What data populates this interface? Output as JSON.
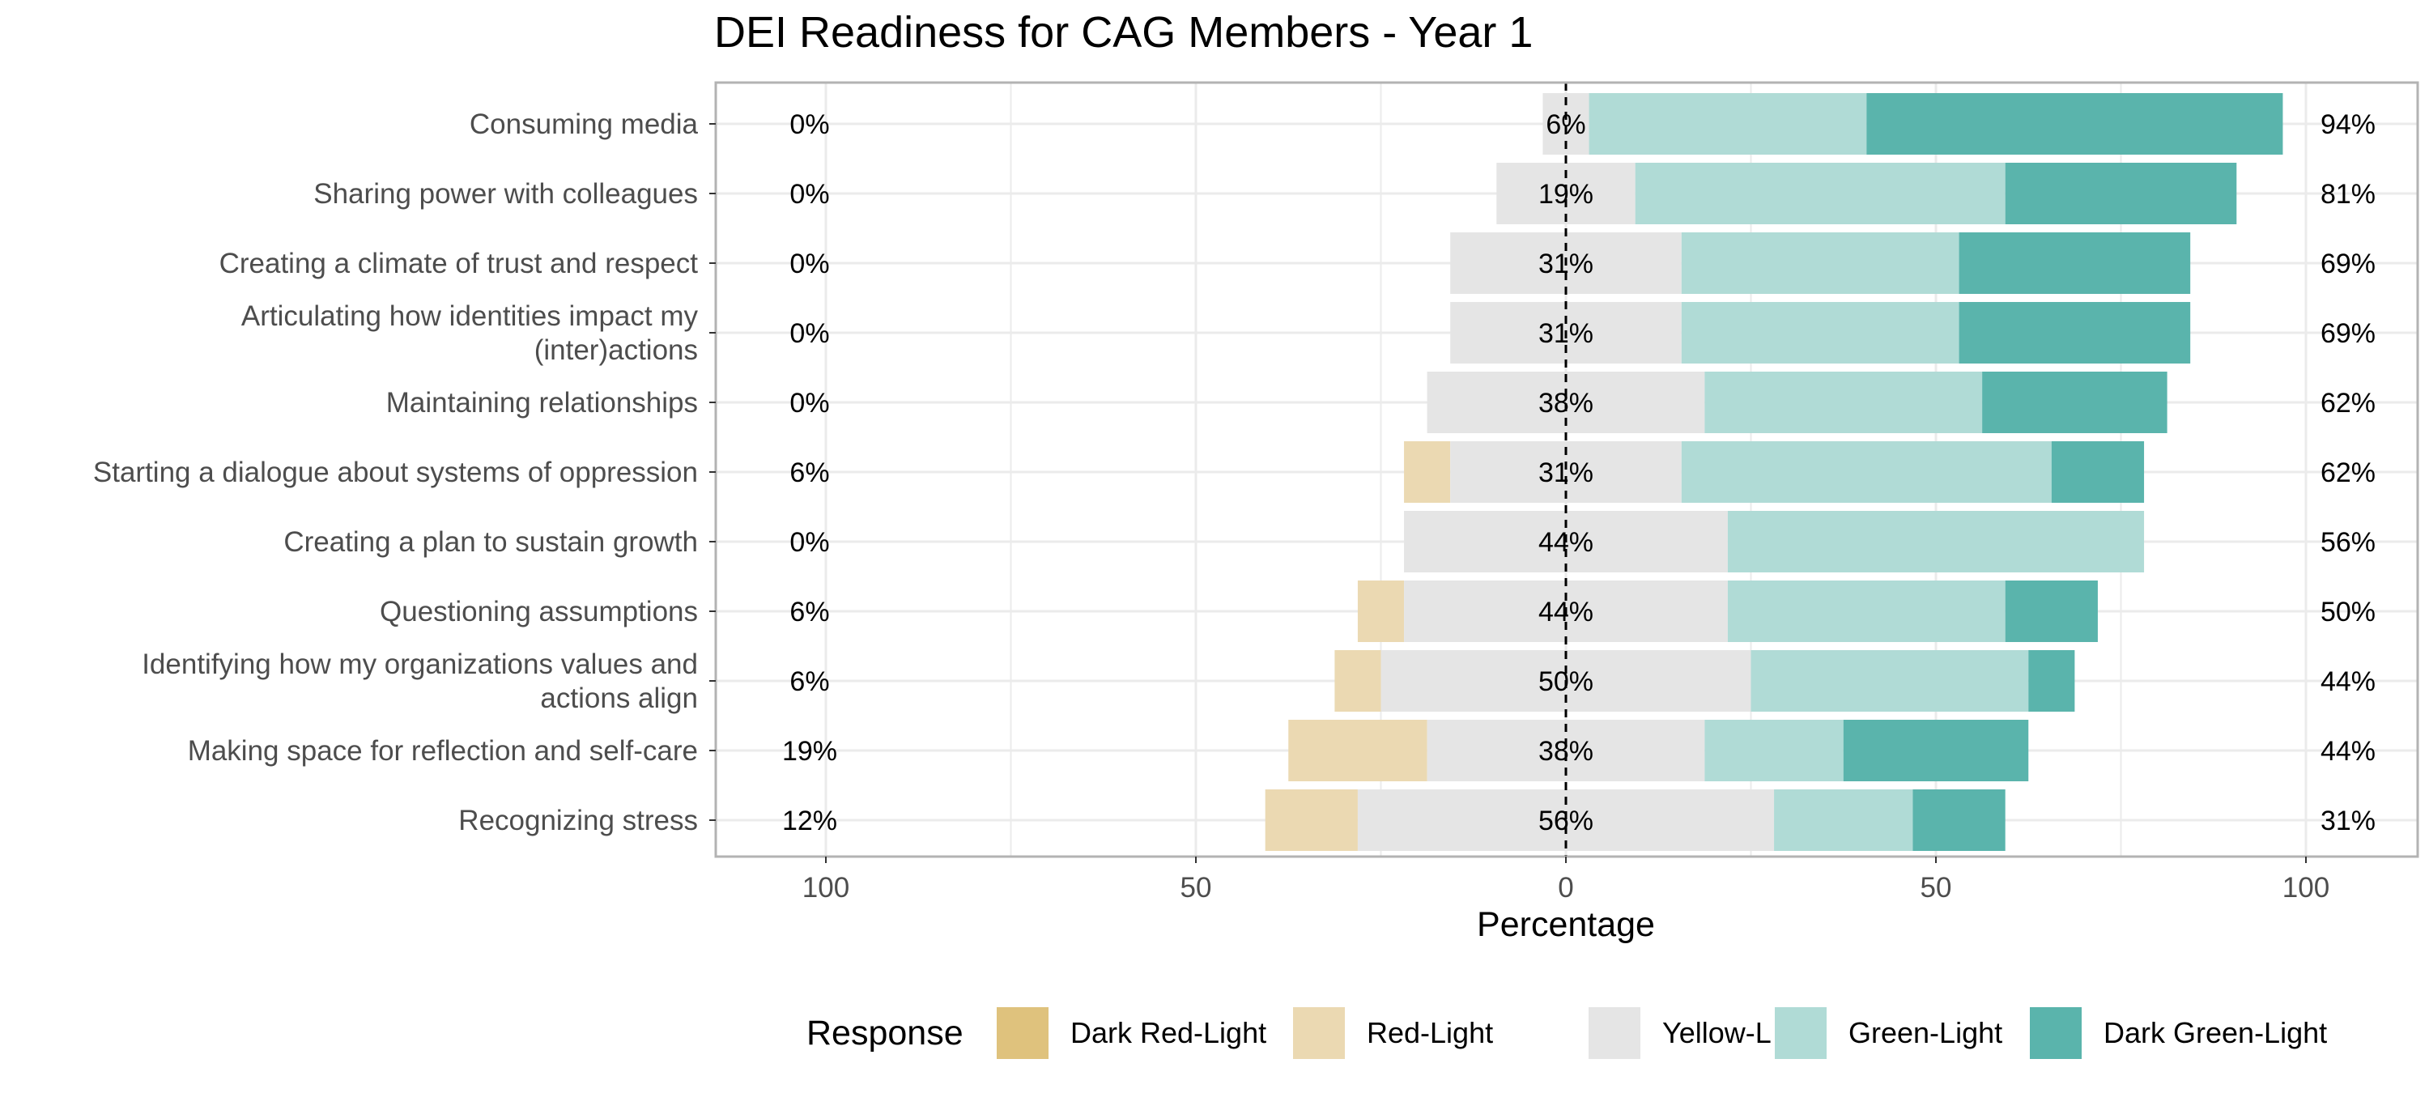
{
  "chart_data": {
    "type": "bar",
    "subtype": "diverging-stacked-horizontal",
    "title": "DEI Readiness for CAG Members - Year 1",
    "xlabel": "Percentage",
    "ylabel": "",
    "xlim": [
      -108,
      108
    ],
    "xticks": [
      -100,
      -50,
      0,
      50,
      100
    ],
    "xtick_labels": [
      "100",
      "50",
      "0",
      "50",
      "100"
    ],
    "grid": true,
    "legend": {
      "title": "Response",
      "position": "bottom",
      "entries": [
        "Dark Red-Light",
        "Red-Light",
        "Yellow-Light",
        "Green-Light",
        "Dark Green-Light"
      ]
    },
    "colors": {
      "Dark Red-Light": "#dfc27d",
      "Red-Light": "#ebd9b2",
      "Yellow-Light": "#e5e5e5",
      "Green-Light": "#b0dbd6",
      "Dark Green-Light": "#5ab4ac"
    },
    "categories": [
      "Consuming media",
      "Sharing power with colleagues",
      "Creating a climate of trust and respect",
      "Articulating how identities impact my (inter)actions",
      "Maintaining relationships",
      "Starting a dialogue about systems of oppression",
      "Creating a plan to sustain growth",
      "Questioning assumptions",
      "Identifying how my organizations values and actions align",
      "Making space for reflection and self-care",
      "Recognizing stress"
    ],
    "category_lines": [
      [
        "Consuming media"
      ],
      [
        "Sharing power with colleagues"
      ],
      [
        "Creating a climate of trust and respect"
      ],
      [
        "Articulating how identities impact my",
        "(inter)actions"
      ],
      [
        "Maintaining relationships"
      ],
      [
        "Starting a dialogue about systems of oppression"
      ],
      [
        "Creating a plan to sustain growth"
      ],
      [
        "Questioning assumptions"
      ],
      [
        "Identifying how my organizations values and",
        "actions align"
      ],
      [
        "Making space for reflection and self-care"
      ],
      [
        "Recognizing stress"
      ]
    ],
    "series": [
      {
        "name": "Dark Red-Light",
        "values": [
          0,
          0,
          0,
          0,
          0,
          0,
          0,
          0,
          0,
          0,
          0
        ]
      },
      {
        "name": "Red-Light",
        "values": [
          0,
          0,
          0,
          0,
          0,
          6.25,
          0,
          6.25,
          6.25,
          18.75,
          12.5
        ]
      },
      {
        "name": "Yellow-Light",
        "values": [
          6.25,
          18.75,
          31.25,
          31.25,
          37.5,
          31.25,
          43.75,
          43.75,
          50,
          37.5,
          56.25
        ]
      },
      {
        "name": "Green-Light",
        "values": [
          37.5,
          50,
          37.5,
          37.5,
          37.5,
          50,
          56.25,
          37.5,
          37.5,
          18.75,
          18.75
        ]
      },
      {
        "name": "Dark Green-Light",
        "values": [
          56.25,
          31.25,
          31.25,
          31.25,
          25,
          12.5,
          0,
          12.5,
          6.25,
          25,
          12.5
        ]
      }
    ],
    "labels_left": [
      "0%",
      "0%",
      "0%",
      "0%",
      "0%",
      "6%",
      "0%",
      "6%",
      "6%",
      "19%",
      "12%"
    ],
    "labels_center": [
      "6%",
      "19%",
      "31%",
      "31%",
      "38%",
      "31%",
      "44%",
      "44%",
      "50%",
      "38%",
      "56%"
    ],
    "labels_right": [
      "94%",
      "81%",
      "69%",
      "69%",
      "62%",
      "62%",
      "56%",
      "50%",
      "44%",
      "44%",
      "31%"
    ]
  }
}
